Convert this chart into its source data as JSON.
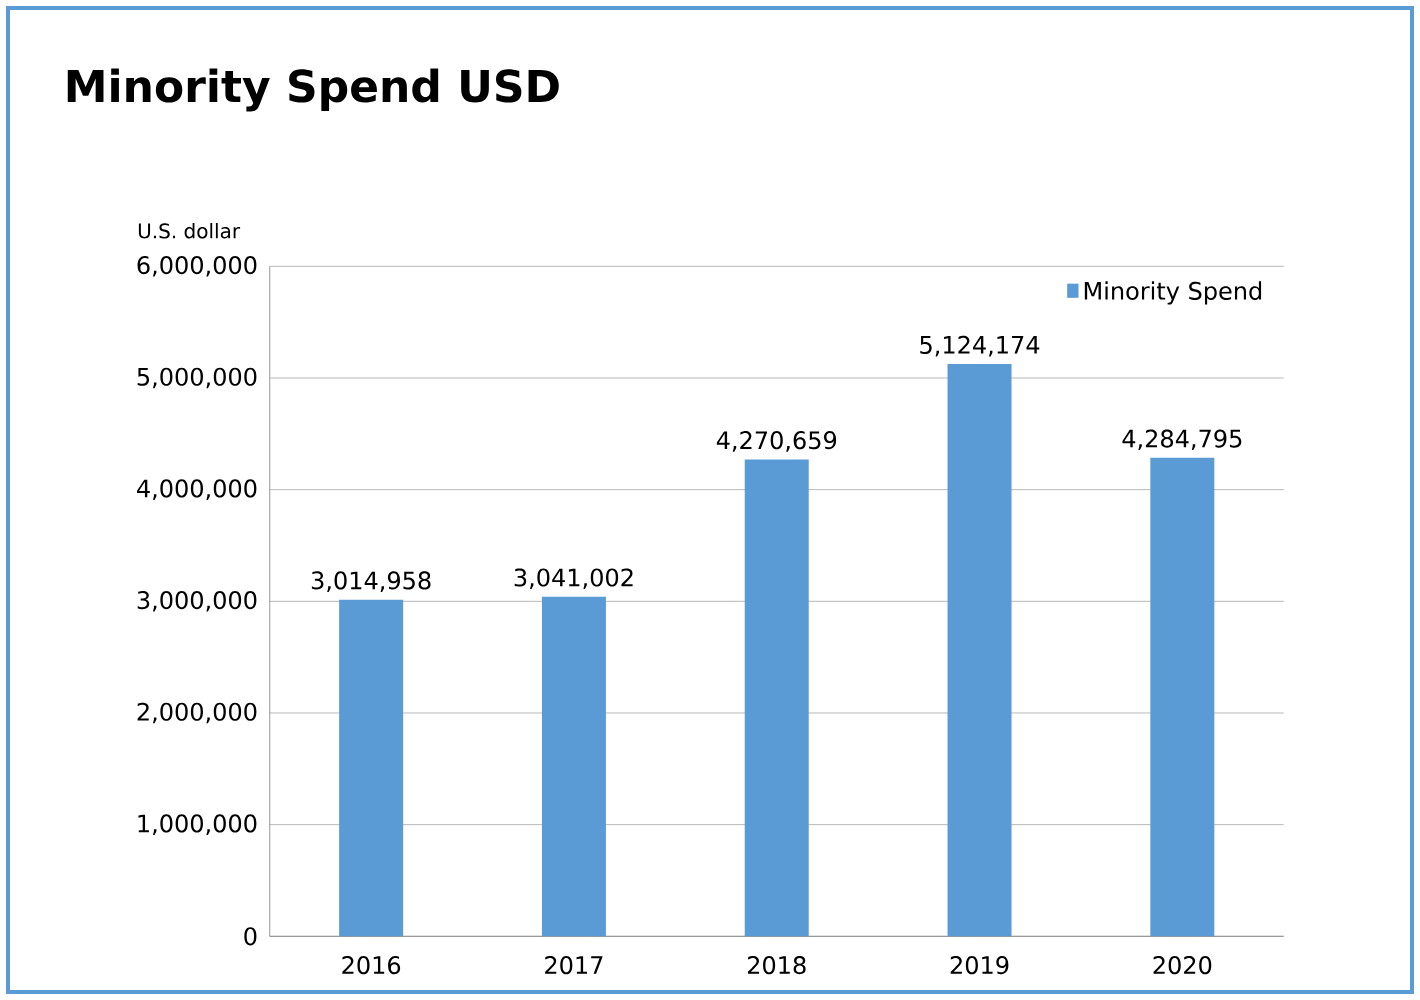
{
  "chart_data": {
    "type": "bar",
    "title": "Minority Spend USD",
    "ylabel": "U.S. dollar",
    "categories": [
      "2016",
      "2017",
      "2018",
      "2019",
      "2020"
    ],
    "series": [
      {
        "name": "Minority Spend",
        "color": "#5b9bd5",
        "values": [
          3014958,
          3041002,
          4270659,
          5124174,
          4284795
        ],
        "value_labels": [
          "3,014,958",
          "3,041,002",
          "4,270,659",
          "5,124,174",
          "4,284,795"
        ]
      }
    ],
    "ylim": [
      0,
      6000000
    ],
    "yticks": [
      0,
      {
        "value": 1000000,
        "label": "1,000,000"
      },
      {
        "value": 2000000,
        "label": "2,000,000"
      },
      {
        "value": 3000000,
        "label": "3,000,000"
      },
      {
        "value": 4000000,
        "label": "4,000,000"
      },
      {
        "value": 5000000,
        "label": "5,000,000"
      },
      {
        "value": 6000000,
        "label": "6,000,000"
      }
    ],
    "grid": "y",
    "legend": "top right"
  }
}
